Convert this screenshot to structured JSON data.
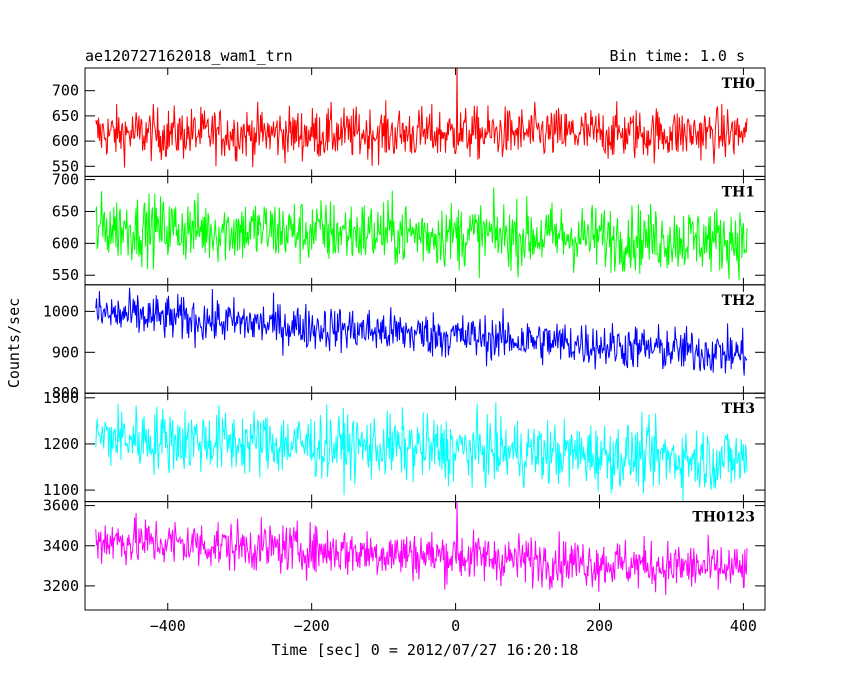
{
  "chart_data": {
    "type": "line",
    "title": "ae120727162018_wam1_trn",
    "bin_time_label": "Bin time: 1.0 s",
    "xlabel": "Time [sec] 0 = 2012/07/27 16:20:18",
    "ylabel": "Counts/sec",
    "xlim": [
      -515,
      430
    ],
    "x_ticks": [
      -400,
      -200,
      0,
      200,
      400
    ],
    "x_range": [
      -500,
      405
    ],
    "x_step": 1,
    "panels": [
      {
        "name": "TH0",
        "color": "#ff0000",
        "ylim": [
          530,
          745
        ],
        "y_ticks": [
          550,
          600,
          650,
          700
        ],
        "start_level": 615,
        "end_level": 615,
        "noise": 26,
        "spike_x": 2,
        "spike_value": 745
      },
      {
        "name": "TH1",
        "color": "#00ff00",
        "ylim": [
          535,
          705
        ],
        "y_ticks": [
          550,
          600,
          650,
          700
        ],
        "start_level": 625,
        "end_level": 605,
        "noise": 26
      },
      {
        "name": "TH2",
        "color": "#0000ff",
        "ylim": [
          800,
          1065
        ],
        "y_ticks": [
          800,
          900,
          1000
        ],
        "start_level": 995,
        "end_level": 895,
        "noise": 28
      },
      {
        "name": "TH3",
        "color": "#00ffff",
        "ylim": [
          1075,
          1310
        ],
        "y_ticks": [
          1100,
          1200,
          1300
        ],
        "start_level": 1215,
        "end_level": 1165,
        "noise": 36
      },
      {
        "name": "TH0123",
        "color": "#ff00ff",
        "ylim": [
          3080,
          3620
        ],
        "y_ticks": [
          3200,
          3400,
          3600
        ],
        "start_level": 3430,
        "end_level": 3280,
        "noise": 62,
        "spike_x": 2,
        "spike_value": 3620
      }
    ]
  }
}
